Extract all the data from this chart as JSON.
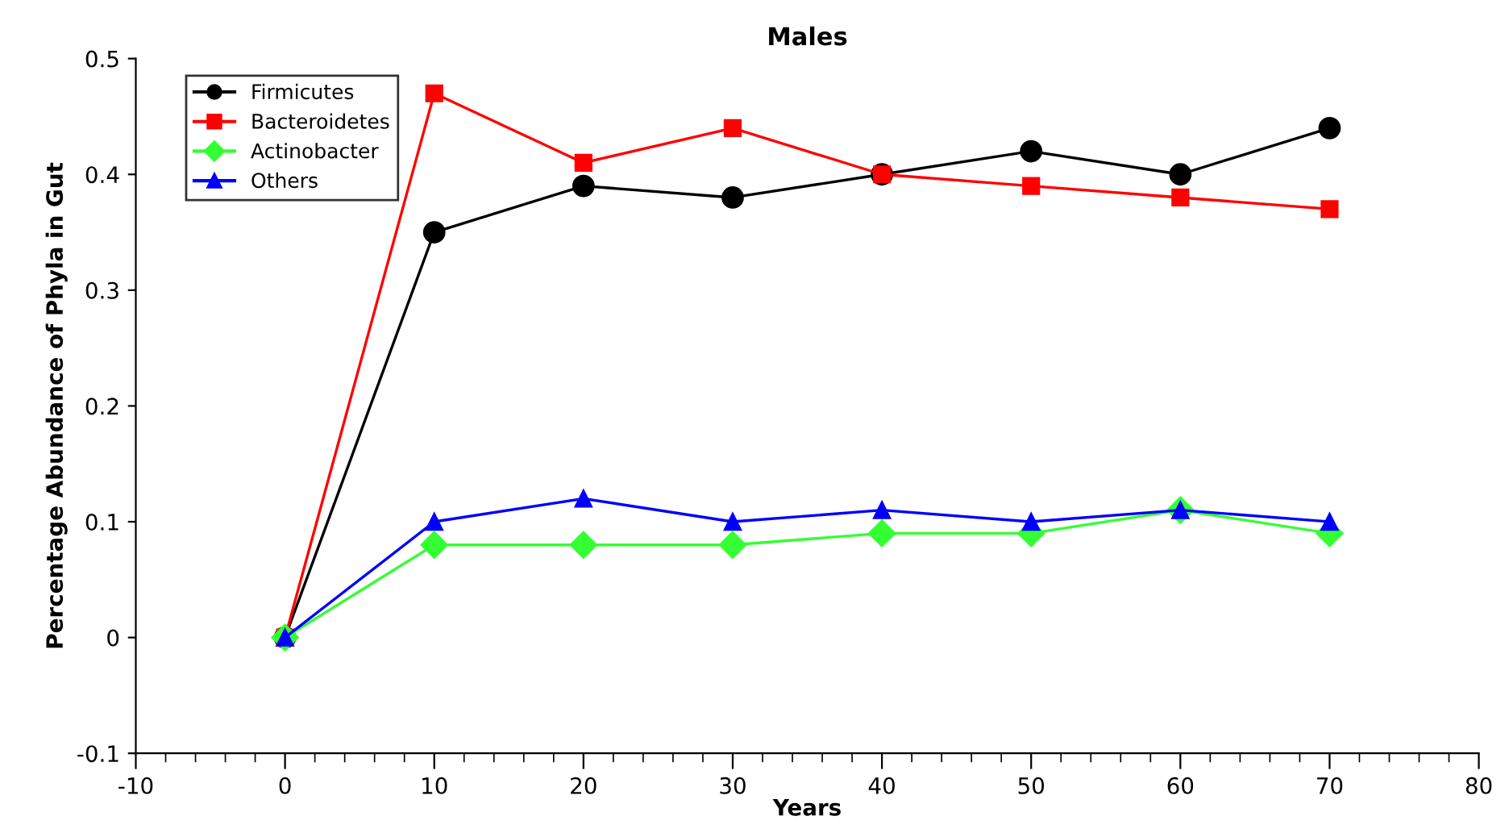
{
  "chart_data": {
    "type": "line",
    "title": "Males",
    "xlabel": "Years",
    "ylabel": "Percentage Abundance of Phyla in Gut",
    "x": [
      0,
      10,
      20,
      30,
      40,
      50,
      60,
      70
    ],
    "series": [
      {
        "name": "Firmicutes",
        "color": "#000000",
        "marker": "circle",
        "values": [
          0,
          0.35,
          0.39,
          0.38,
          0.4,
          0.42,
          0.4,
          0.44
        ]
      },
      {
        "name": "Bacteroidetes",
        "color": "#ff0000",
        "marker": "square",
        "values": [
          0,
          0.47,
          0.41,
          0.44,
          0.4,
          0.39,
          0.38,
          0.37
        ]
      },
      {
        "name": "Actinobacter",
        "color": "#33ff33",
        "marker": "diamond",
        "values": [
          0,
          0.08,
          0.08,
          0.08,
          0.09,
          0.09,
          0.11,
          0.09
        ]
      },
      {
        "name": "Others",
        "color": "#0000ff",
        "marker": "triangle",
        "values": [
          0,
          0.1,
          0.12,
          0.1,
          0.11,
          0.1,
          0.11,
          0.1
        ]
      }
    ],
    "xlim": [
      -10,
      80
    ],
    "xticks": [
      -10,
      0,
      10,
      20,
      30,
      40,
      50,
      60,
      70,
      80
    ],
    "ylim": [
      -0.1,
      0.5
    ],
    "yticks": [
      -0.1,
      0,
      0.1,
      0.2,
      0.3,
      0.4,
      0.5
    ],
    "legend": "top left",
    "grid": false,
    "line_style": "solid"
  }
}
